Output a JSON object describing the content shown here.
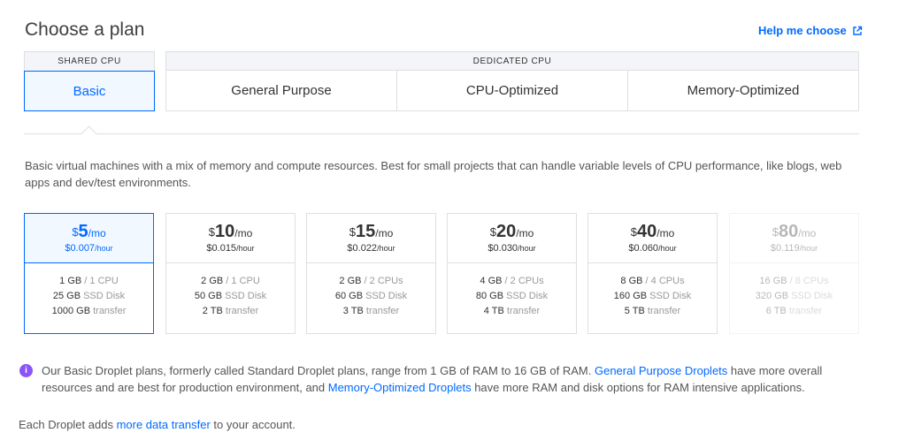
{
  "header": {
    "title": "Choose a plan",
    "help_label": "Help me choose"
  },
  "categories": {
    "shared_label": "SHARED CPU",
    "dedicated_label": "DEDICATED CPU",
    "shared_tabs": [
      "Basic"
    ],
    "dedicated_tabs": [
      "General Purpose",
      "CPU-Optimized",
      "Memory-Optimized"
    ],
    "selected_tab": "Basic"
  },
  "description": "Basic virtual machines with a mix of memory and compute resources. Best for small projects that can handle variable levels of CPU performance, like blogs, web apps and dev/test environments.",
  "plans": [
    {
      "currency": "$",
      "amount": "5",
      "per": "/mo",
      "hourly": "$0.007",
      "hour_unit": "/hour",
      "mem": "1 GB",
      "cpu": "1 CPU",
      "disk": "25 GB",
      "disk_unit": "SSD Disk",
      "transfer": "1000 GB",
      "transfer_unit": "transfer",
      "selected": true,
      "disabled": false
    },
    {
      "currency": "$",
      "amount": "10",
      "per": "/mo",
      "hourly": "$0.015",
      "hour_unit": "/hour",
      "mem": "2 GB",
      "cpu": "1 CPU",
      "disk": "50 GB",
      "disk_unit": "SSD Disk",
      "transfer": "2 TB",
      "transfer_unit": "transfer",
      "selected": false,
      "disabled": false
    },
    {
      "currency": "$",
      "amount": "15",
      "per": "/mo",
      "hourly": "$0.022",
      "hour_unit": "/hour",
      "mem": "2 GB",
      "cpu": "2 CPUs",
      "disk": "60 GB",
      "disk_unit": "SSD Disk",
      "transfer": "3 TB",
      "transfer_unit": "transfer",
      "selected": false,
      "disabled": false
    },
    {
      "currency": "$",
      "amount": "20",
      "per": "/mo",
      "hourly": "$0.030",
      "hour_unit": "/hour",
      "mem": "4 GB",
      "cpu": "2 CPUs",
      "disk": "80 GB",
      "disk_unit": "SSD Disk",
      "transfer": "4 TB",
      "transfer_unit": "transfer",
      "selected": false,
      "disabled": false
    },
    {
      "currency": "$",
      "amount": "40",
      "per": "/mo",
      "hourly": "$0.060",
      "hour_unit": "/hour",
      "mem": "8 GB",
      "cpu": "4 CPUs",
      "disk": "160 GB",
      "disk_unit": "SSD Disk",
      "transfer": "5 TB",
      "transfer_unit": "transfer",
      "selected": false,
      "disabled": false
    },
    {
      "currency": "$",
      "amount": "80",
      "per": "/mo",
      "hourly": "$0.119",
      "hour_unit": "/hour",
      "mem": "16 GB",
      "cpu": "8 CPUs",
      "disk": "320 GB",
      "disk_unit": "SSD Disk",
      "transfer": "6 TB",
      "transfer_unit": "transfer",
      "selected": false,
      "disabled": true
    }
  ],
  "info": {
    "text_1": "Our Basic Droplet plans, formerly called Standard Droplet plans, range from 1 GB of RAM to 16 GB of RAM. ",
    "link_1": "General Purpose Droplets",
    "text_2": " have more overall resources and are best for production environment, and ",
    "link_2": "Memory-Optimized Droplets",
    "text_3": " have more RAM and disk options for RAM intensive applications.",
    "icon_glyph": "i"
  },
  "footer": {
    "text_1": "Each Droplet adds ",
    "link": "more data transfer",
    "text_2": " to your account."
  },
  "colors": {
    "accent": "#0069ff",
    "info_icon": "#8a54f7",
    "border": "#dfdfdf",
    "header_bg": "#f3f5f9"
  },
  "icons": {
    "help": "external-link-icon",
    "info": "info-icon"
  }
}
